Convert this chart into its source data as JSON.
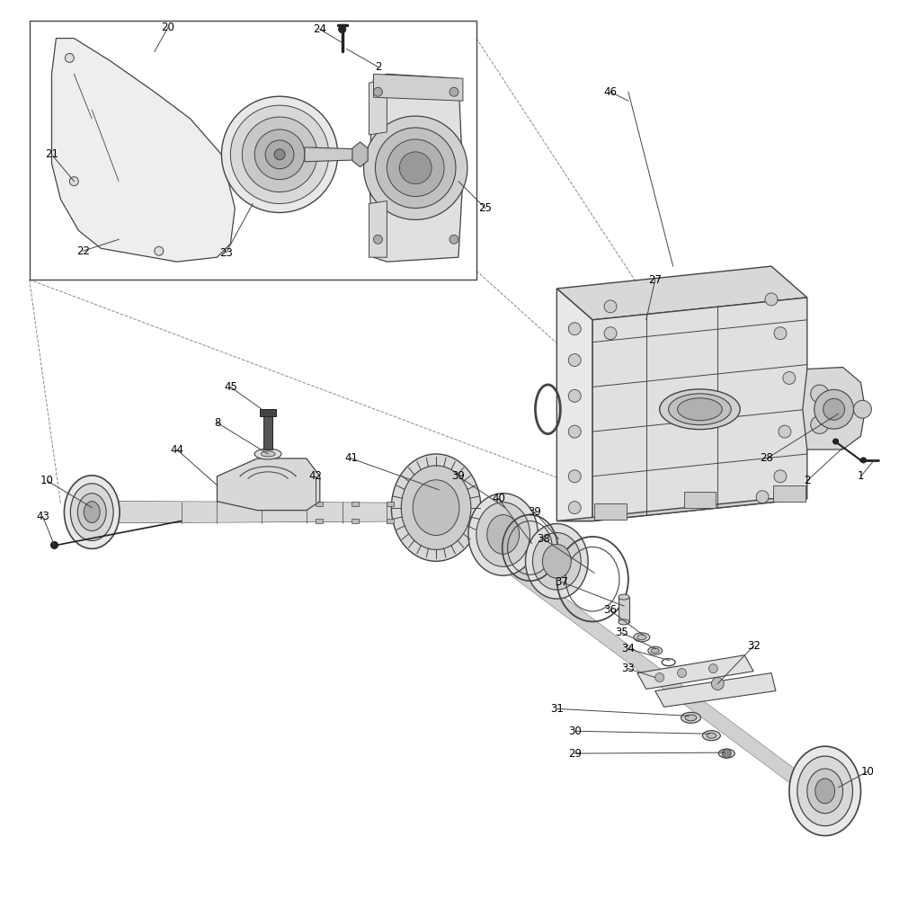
{
  "bg_color": "#ffffff",
  "line_color": "#444444",
  "dark_color": "#222222",
  "fill_light": "#f0f0f0",
  "fill_mid": "#d8d8d8",
  "fill_dark": "#b0b0b0",
  "label_color": "#000000",
  "label_fontsize": 8.5,
  "fig_width": 10,
  "fig_height": 10,
  "dpi": 100
}
